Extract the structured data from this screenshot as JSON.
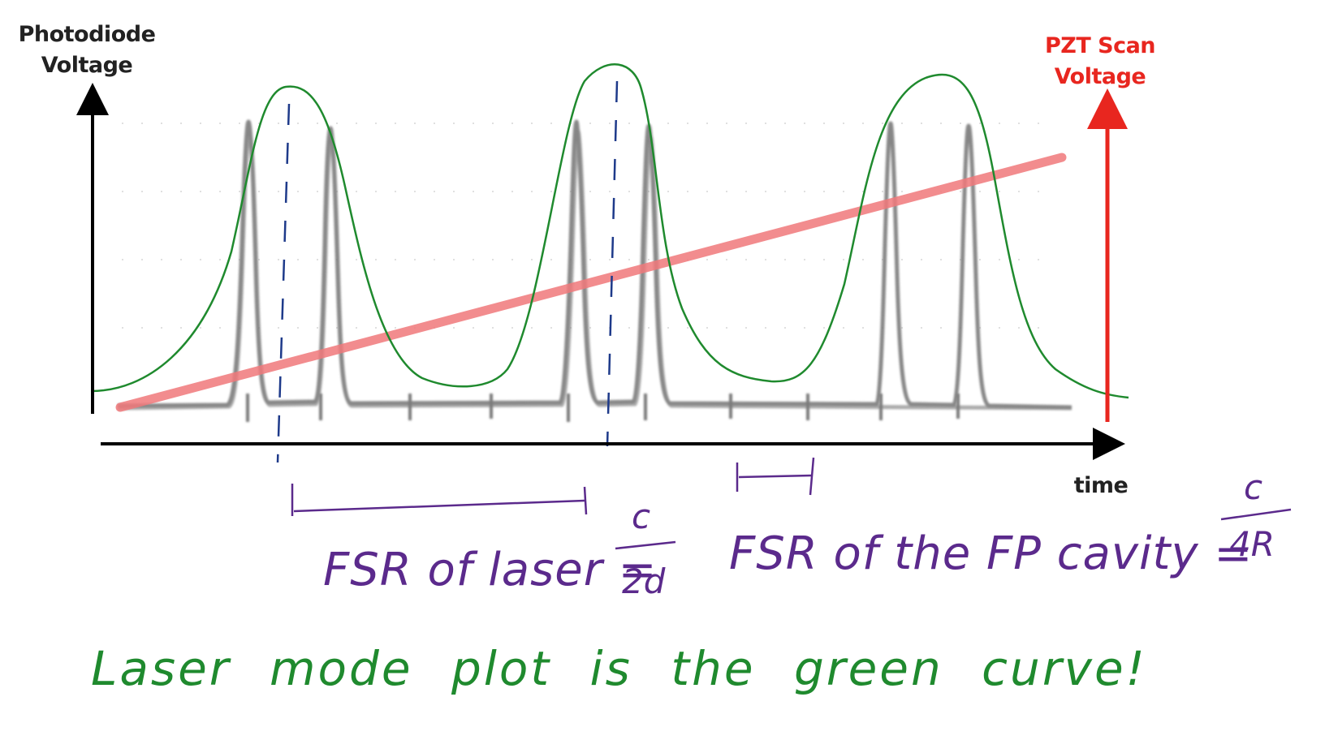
{
  "labels": {
    "y_left": "Photodiode Voltage",
    "y_right": "PZT Scan Voltage",
    "x": "time"
  },
  "annotations": {
    "fsr_laser": "FSR of laser =",
    "fsr_laser_numerator": "c",
    "fsr_laser_denominator": "2d",
    "fsr_fp_cavity": "FSR of the FP cavity =",
    "fsr_fp_numerator": "c",
    "fsr_fp_denominator": "4R",
    "caption": "Laser mode plot is the green curve!"
  },
  "colors": {
    "photodiode_trace": "#7a7a7a",
    "pzt_ramp": "#f0787a",
    "pzt_axis": "#e8261f",
    "laser_mode_curve": "#1f8a2e",
    "handwriting_purple": "#5b2a8c",
    "axis": "#000000"
  }
}
